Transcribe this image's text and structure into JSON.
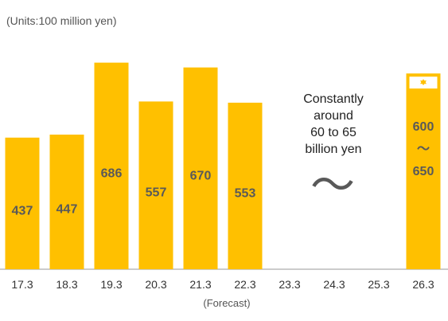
{
  "chart_data": {
    "type": "bar",
    "units_label": "(Units:100 million yen)",
    "categories": [
      "17.3",
      "18.3",
      "19.3",
      "20.3",
      "21.3",
      "22.3",
      "23.3",
      "24.3",
      "25.3",
      "26.3"
    ],
    "values": [
      437,
      447,
      686,
      557,
      670,
      553,
      null,
      null,
      null,
      null
    ],
    "forecast_range": {
      "category": "26.3",
      "low": 600,
      "high": 650,
      "low_label": "600",
      "tilde_label": "～",
      "high_label": "650"
    },
    "annotation_lines": [
      "Constantly",
      "around",
      "60 to 65",
      "billion yen"
    ],
    "annotation_tilde": "〜",
    "sub_label": "(Forecast)",
    "ylim": [
      0,
      730
    ],
    "colors": {
      "bar": "#FFC000",
      "value_text": "#595959",
      "tick_text": "#333333",
      "axis": "#999999",
      "tilde": "#595959"
    }
  }
}
